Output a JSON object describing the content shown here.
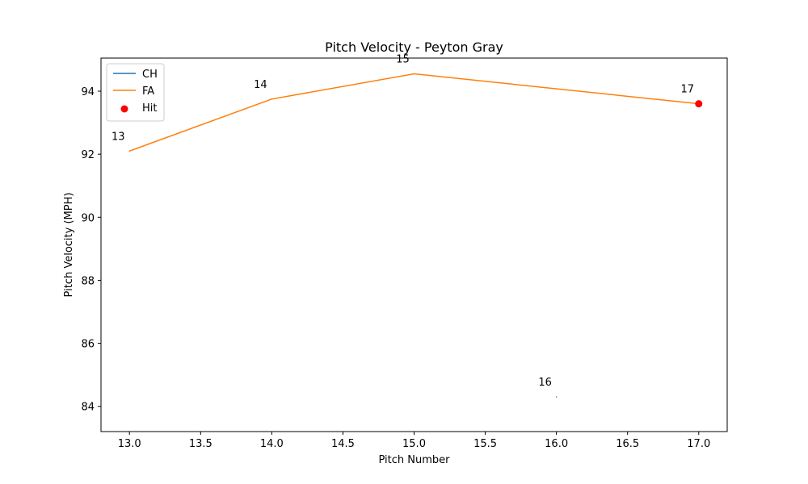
{
  "chart_data": {
    "type": "line",
    "title": "Pitch Velocity - Peyton Gray",
    "xlabel": "Pitch Number",
    "ylabel": "Pitch Velocity (MPH)",
    "xlim": [
      12.8,
      17.2
    ],
    "ylim": [
      83.2,
      95.05
    ],
    "x_ticks": [
      13.0,
      13.5,
      14.0,
      14.5,
      15.0,
      15.5,
      16.0,
      16.5,
      17.0
    ],
    "x_tick_labels": [
      "13.0",
      "13.5",
      "14.0",
      "14.5",
      "15.0",
      "15.5",
      "16.0",
      "16.5",
      "17.0"
    ],
    "y_ticks": [
      84,
      86,
      88,
      90,
      92,
      94
    ],
    "y_tick_labels": [
      "84",
      "86",
      "88",
      "90",
      "92",
      "94"
    ],
    "grid": false,
    "legend_position": "top-left",
    "series": [
      {
        "name": "CH",
        "kind": "line",
        "color": "#1f77b4",
        "x": [
          16
        ],
        "y": [
          84.3
        ]
      },
      {
        "name": "FA",
        "kind": "line",
        "color": "#ff7f0e",
        "x": [
          13,
          14,
          15,
          17
        ],
        "y": [
          92.1,
          93.75,
          94.55,
          93.6
        ]
      },
      {
        "name": "Hit",
        "kind": "scatter",
        "color": "#ff0000",
        "x": [
          17
        ],
        "y": [
          93.6
        ]
      }
    ],
    "annotations": [
      {
        "text": "13",
        "x": 13,
        "y": 92.1
      },
      {
        "text": "14",
        "x": 14,
        "y": 93.75
      },
      {
        "text": "15",
        "x": 15,
        "y": 94.55
      },
      {
        "text": "16",
        "x": 16,
        "y": 84.3
      },
      {
        "text": "17",
        "x": 17,
        "y": 93.6
      }
    ]
  }
}
